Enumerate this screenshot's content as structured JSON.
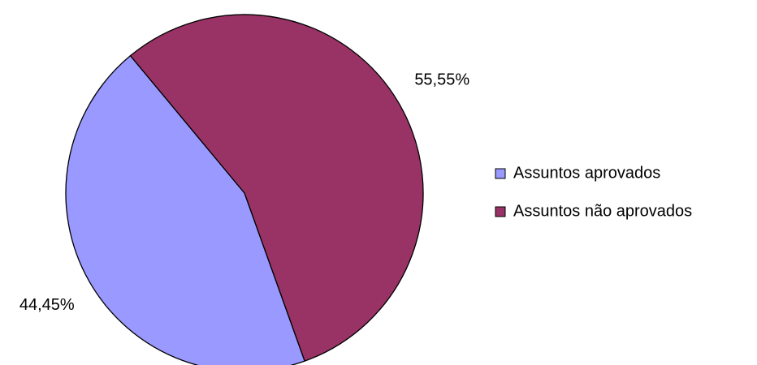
{
  "chart_data": {
    "type": "pie",
    "categories": [
      "Assuntos aprovados",
      "Assuntos não aprovados"
    ],
    "values": [
      44.45,
      55.55
    ],
    "value_labels": [
      "44,45%",
      "55,55%"
    ],
    "colors": [
      "#9999ff",
      "#993366"
    ],
    "legend": "right"
  }
}
